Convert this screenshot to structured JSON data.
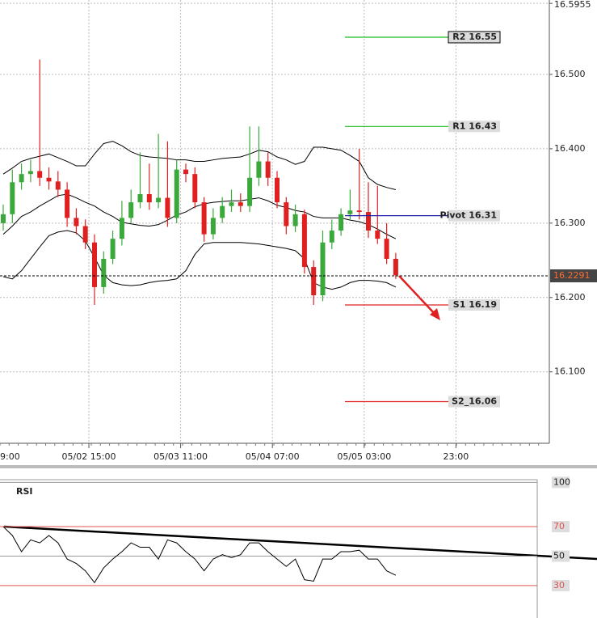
{
  "chart_data": [
    {
      "type": "candlestick",
      "open": [
        16.3,
        16.312,
        16.355,
        16.366,
        16.37,
        16.361,
        16.356,
        16.345,
        16.307,
        16.296,
        16.274,
        16.214,
        16.252,
        16.279,
        16.307,
        16.328,
        16.339,
        16.328,
        16.334,
        16.307,
        16.372,
        16.366,
        16.328,
        16.285,
        16.307,
        16.323,
        16.328,
        16.323,
        16.361,
        16.383,
        16.361,
        16.328,
        16.296,
        16.312,
        16.241,
        16.203,
        16.274,
        16.29,
        16.312,
        16.317,
        16.315,
        16.29,
        16.279,
        16.252
      ],
      "high": [
        16.325,
        16.372,
        16.38,
        16.385,
        16.52,
        16.375,
        16.37,
        16.355,
        16.32,
        16.305,
        16.285,
        16.262,
        16.29,
        16.33,
        16.345,
        16.395,
        16.38,
        16.42,
        16.41,
        16.385,
        16.38,
        16.375,
        16.335,
        16.32,
        16.335,
        16.345,
        16.34,
        16.43,
        16.43,
        16.395,
        16.37,
        16.335,
        16.325,
        16.318,
        16.25,
        16.29,
        16.305,
        16.32,
        16.345,
        16.4,
        16.355,
        16.35,
        16.3,
        16.26
      ],
      "low": [
        16.29,
        16.3,
        16.345,
        16.355,
        16.35,
        16.345,
        16.335,
        16.295,
        16.285,
        16.265,
        16.19,
        16.205,
        16.245,
        16.27,
        16.3,
        16.32,
        16.318,
        16.32,
        16.295,
        16.3,
        16.355,
        16.32,
        16.275,
        16.278,
        16.3,
        16.315,
        16.315,
        16.315,
        16.35,
        16.35,
        16.32,
        16.285,
        16.288,
        16.232,
        16.19,
        16.195,
        16.265,
        16.283,
        16.305,
        16.305,
        16.28,
        16.272,
        16.245,
        16.225
      ],
      "close": [
        16.312,
        16.355,
        16.366,
        16.37,
        16.361,
        16.356,
        16.345,
        16.307,
        16.296,
        16.274,
        16.214,
        16.252,
        16.279,
        16.307,
        16.328,
        16.339,
        16.328,
        16.334,
        16.307,
        16.372,
        16.366,
        16.328,
        16.285,
        16.307,
        16.323,
        16.328,
        16.323,
        16.361,
        16.383,
        16.361,
        16.328,
        16.296,
        16.312,
        16.241,
        16.203,
        16.274,
        16.29,
        16.312,
        16.317,
        16.315,
        16.29,
        16.279,
        16.252,
        16.23
      ],
      "upper_band": [
        16.366,
        16.374,
        16.383,
        16.387,
        16.39,
        16.393,
        16.388,
        16.383,
        16.377,
        16.377,
        16.393,
        16.407,
        16.41,
        16.404,
        16.396,
        16.391,
        16.389,
        16.388,
        16.387,
        16.385,
        16.385,
        16.383,
        16.383,
        16.385,
        16.387,
        16.388,
        16.389,
        16.393,
        16.398,
        16.396,
        16.389,
        16.385,
        16.379,
        16.383,
        16.402,
        16.402,
        16.4,
        16.398,
        16.391,
        16.383,
        16.361,
        16.352,
        16.348,
        16.345
      ],
      "middle_band": [
        16.285,
        16.296,
        16.309,
        16.315,
        16.323,
        16.33,
        16.337,
        16.339,
        16.334,
        16.328,
        16.323,
        16.315,
        16.309,
        16.301,
        16.299,
        16.297,
        16.296,
        16.298,
        16.304,
        16.311,
        16.315,
        16.322,
        16.326,
        16.328,
        16.329,
        16.33,
        16.33,
        16.332,
        16.334,
        16.33,
        16.324,
        16.321,
        16.317,
        16.315,
        16.309,
        16.307,
        16.307,
        16.307,
        16.304,
        16.302,
        16.298,
        16.292,
        16.285,
        16.279
      ],
      "lower_band": [
        16.228,
        16.225,
        16.236,
        16.252,
        16.268,
        16.283,
        16.288,
        16.29,
        16.287,
        16.276,
        16.254,
        16.23,
        16.22,
        16.217,
        16.216,
        16.217,
        16.22,
        16.222,
        16.223,
        16.225,
        16.236,
        16.258,
        16.272,
        16.274,
        16.274,
        16.274,
        16.274,
        16.273,
        16.272,
        16.27,
        16.268,
        16.266,
        16.263,
        16.252,
        16.22,
        16.214,
        16.211,
        16.214,
        16.22,
        16.223,
        16.223,
        16.222,
        16.22,
        16.214
      ],
      "up_color": "#3aa83a",
      "down_color": "#e02020",
      "band_color": "#000000",
      "ylim": [
        16.004,
        16.6
      ],
      "yticks": [
        16.5955,
        {
          "value": 16.5,
          "label": "16.500"
        },
        {
          "value": 16.4,
          "label": "16.400"
        },
        {
          "value": 16.3,
          "label": "16.300"
        },
        {
          "value": 16.2,
          "label": "16.200"
        },
        {
          "value": 16.1,
          "label": "16.100"
        }
      ],
      "xtick_labels": [
        "9:00",
        "05/02 15:00",
        "05/03 11:00",
        "05/04 07:00",
        "05/05 03:00",
        "23:00"
      ],
      "grid": true,
      "levels": [
        {
          "label": "R2 16.55",
          "value": 16.55,
          "color": "#22bb22"
        },
        {
          "label": "R1 16.43",
          "value": 16.43,
          "color": "#22bb22"
        },
        {
          "label": "Pivot 16.31",
          "value": 16.31,
          "color": "#2222aa"
        },
        {
          "label": "S1 16.19",
          "value": 16.19,
          "color": "#dd2222"
        },
        {
          "label": "S2_16.06",
          "value": 16.06,
          "color": "#dd2222"
        }
      ],
      "last_price": 16.2291
    },
    {
      "type": "line",
      "title": "RSI",
      "values": [
        70,
        64,
        53,
        61,
        59,
        64,
        59,
        48,
        45,
        40,
        32,
        42,
        48,
        53,
        59,
        56,
        56,
        48,
        61,
        59,
        53,
        48,
        40,
        48,
        51,
        49,
        51,
        59,
        59,
        53,
        48,
        43,
        48,
        34,
        33,
        48,
        48,
        53,
        53,
        54,
        48,
        48,
        40,
        37
      ],
      "color": "#000000",
      "ylim": [
        8,
        109
      ],
      "yticks": [
        100,
        70,
        50,
        30
      ],
      "grid_colors": [
        "#999999",
        "#e05050",
        "#999999",
        "#e05050"
      ]
    }
  ]
}
